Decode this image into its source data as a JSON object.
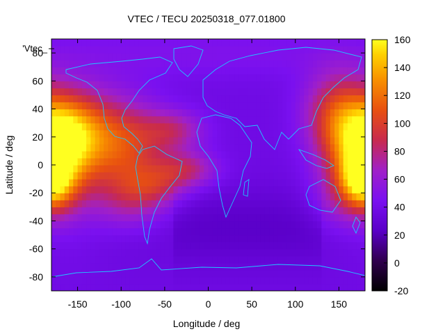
{
  "chart_data": {
    "type": "heatmap",
    "title": "VTEC / TECU 20250318_077.01800",
    "xlabel": "Longitude / deg",
    "ylabel": "Latitude / deg",
    "key_label": "'Vtec_",
    "xlim": [
      -180,
      180
    ],
    "ylim": [
      -90,
      90
    ],
    "x_ticks": [
      -150,
      -100,
      -50,
      0,
      50,
      100,
      150
    ],
    "y_ticks": [
      -80,
      -60,
      -40,
      -20,
      0,
      20,
      40,
      60,
      80
    ],
    "colorbar": {
      "range": [
        -20,
        160
      ],
      "ticks": [
        -20,
        0,
        20,
        40,
        60,
        80,
        100,
        120,
        140,
        160
      ]
    },
    "colors": {
      "overlay": "#1ec8ff"
    },
    "blobs": [
      {
        "lon": -165,
        "lat": 18,
        "slon": 25,
        "slat": 20,
        "value": 80
      },
      {
        "lon": -175,
        "lat": -14,
        "slon": 18,
        "slat": 14,
        "value": 55
      },
      {
        "lon": -160,
        "lat": 0,
        "slon": 35,
        "slat": 35,
        "value": 30
      },
      {
        "lon": -140,
        "lat": 30,
        "slon": 40,
        "slat": 20,
        "value": 25
      },
      {
        "lon": -110,
        "lat": 15,
        "slon": 30,
        "slat": 20,
        "value": 35
      },
      {
        "lon": -80,
        "lat": 5,
        "slon": 30,
        "slat": 25,
        "value": 30
      },
      {
        "lon": -90,
        "lat": -25,
        "slon": 30,
        "slat": 15,
        "value": 25
      },
      {
        "lon": -40,
        "lat": 25,
        "slon": 25,
        "slat": 10,
        "value": 35
      },
      {
        "lon": -25,
        "lat": -3,
        "slon": 25,
        "slat": 9,
        "value": 40
      },
      {
        "lon": -60,
        "lat": -15,
        "slon": 25,
        "slat": 10,
        "value": 25
      },
      {
        "lon": 160,
        "lat": 20,
        "slon": 25,
        "slat": 25,
        "value": 60
      },
      {
        "lon": 172,
        "lat": -8,
        "slon": 15,
        "slat": 12,
        "value": 45
      },
      {
        "lon": 140,
        "lat": 40,
        "slon": 25,
        "slat": 20,
        "value": 30
      },
      {
        "lon": 150,
        "lat": -25,
        "slon": 25,
        "slat": 15,
        "value": 20
      },
      {
        "lon": 0,
        "lat": 80,
        "slon": 180,
        "slat": 12,
        "value": 10
      }
    ],
    "base_value": 38
  }
}
